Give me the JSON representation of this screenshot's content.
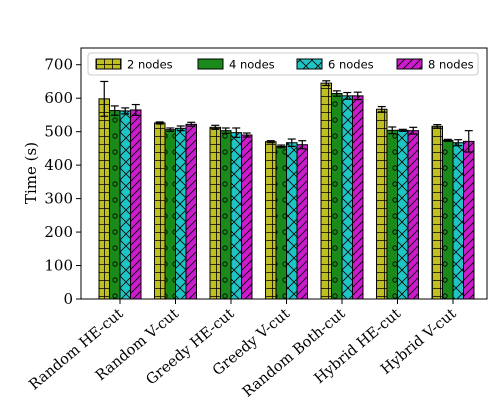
{
  "chart_data": {
    "type": "bar",
    "title": "",
    "xlabel": "",
    "ylabel": "Time (s)",
    "ylim": [
      0,
      750
    ],
    "yticks": [
      0,
      100,
      200,
      300,
      400,
      500,
      600,
      700
    ],
    "grid": false,
    "legend_position": "top",
    "categories": [
      "Random HE-cut",
      "Random V-cut",
      "Greedy HE-cut",
      "Greedy V-cut",
      "Random Both-cut",
      "Hybrid HE-cut",
      "Hybrid V-cut"
    ],
    "series": [
      {
        "name": "2 nodes",
        "color": "#bfbf20",
        "hatch": "grid",
        "values": [
          598,
          526,
          513,
          470,
          645,
          567,
          516
        ],
        "errors": [
          52,
          3,
          6,
          3,
          7,
          8,
          5
        ]
      },
      {
        "name": "4 nodes",
        "color": "#1a8a1a",
        "hatch": "circles",
        "values": [
          563,
          506,
          503,
          456,
          614,
          504,
          474
        ],
        "errors": [
          14,
          5,
          8,
          4,
          8,
          10,
          3
        ]
      },
      {
        "name": "6 nodes",
        "color": "#1fc4c4",
        "hatch": "crosses",
        "values": [
          562,
          510,
          497,
          467,
          607,
          504,
          467
        ],
        "errors": [
          9,
          7,
          14,
          11,
          10,
          3,
          9
        ]
      },
      {
        "name": "8 nodes",
        "color": "#cc1acc",
        "hatch": "diagonal",
        "values": [
          565,
          522,
          490,
          461,
          607,
          503,
          471
        ],
        "errors": [
          16,
          6,
          6,
          12,
          11,
          10,
          32
        ]
      }
    ]
  }
}
